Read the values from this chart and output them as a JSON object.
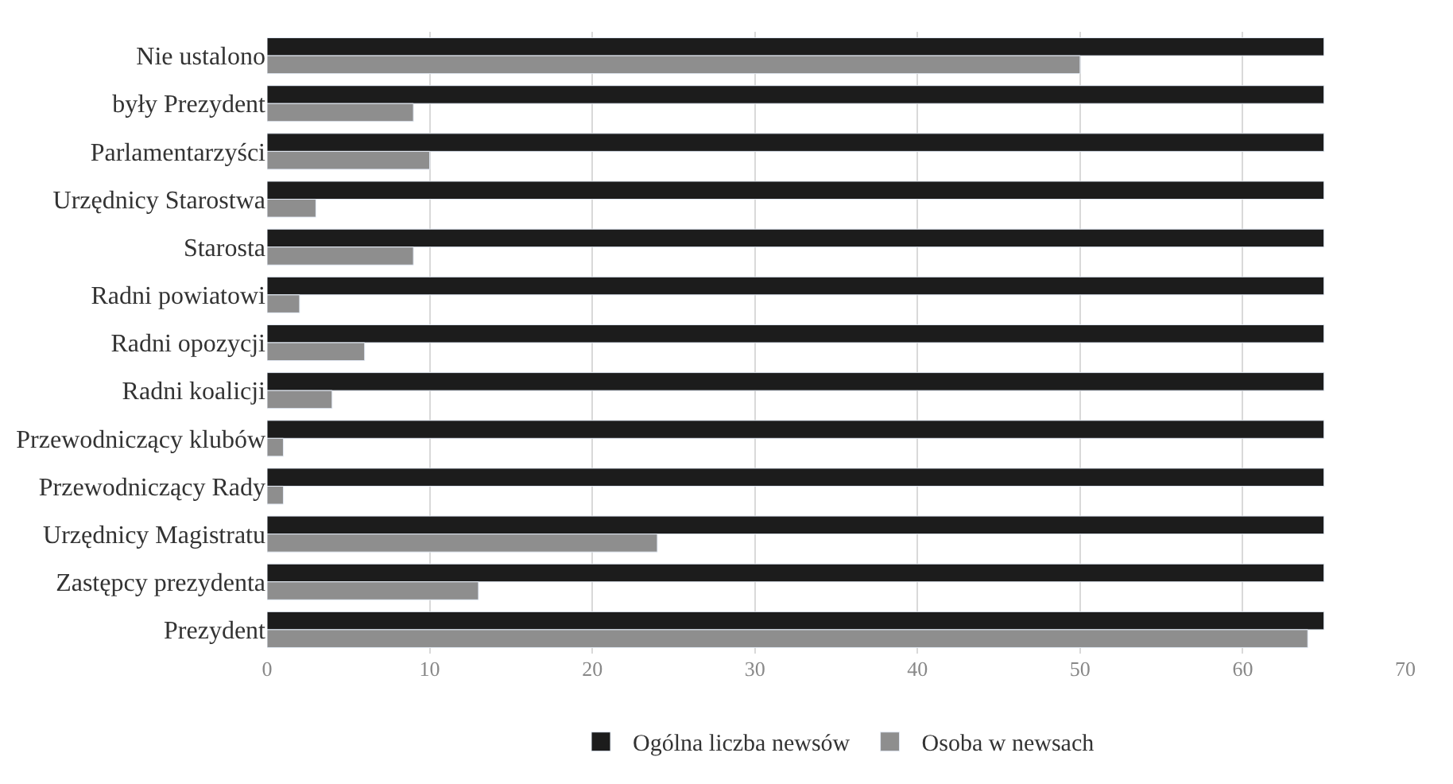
{
  "chart_data": {
    "type": "bar",
    "orientation": "horizontal",
    "categories": [
      "Nie ustalono",
      "były Prezydent",
      "Parlamentarzyści",
      "Urzędnicy Starostwa",
      "Starosta",
      "Radni powiatowi",
      "Radni opozycji",
      "Radni koalicji",
      "Przewodniczący klubów",
      "Przewodniczący Rady",
      "Urzędnicy Magistratu",
      "Zastępcy prezydenta",
      "Prezydent"
    ],
    "series": [
      {
        "name": "Ogólna liczba newsów",
        "color": "#1c1c1c",
        "values": [
          65,
          65,
          65,
          65,
          65,
          65,
          65,
          65,
          65,
          65,
          65,
          65,
          65
        ]
      },
      {
        "name": "Osoba w newsach",
        "color": "#8e8e8e",
        "values": [
          50,
          9,
          10,
          3,
          9,
          2,
          6,
          4,
          1,
          1,
          24,
          13,
          64
        ]
      }
    ],
    "xlim": [
      0,
      70
    ],
    "xticks": [
      0,
      10,
      20,
      30,
      40,
      50,
      60,
      70
    ],
    "grid": "x",
    "legend": "bottom"
  }
}
